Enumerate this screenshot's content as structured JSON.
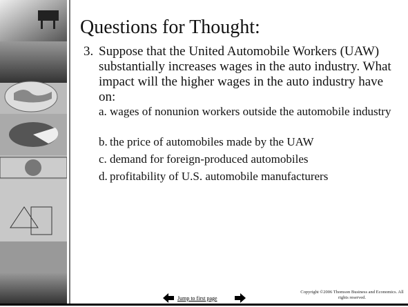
{
  "slide": {
    "title": "Questions for Thought:",
    "question": {
      "number": "3.",
      "text": "Suppose that the United Automobile Workers (UAW) substantially increases wages in the auto industry. What impact will the higher wages in the auto industry have on:"
    },
    "items": [
      {
        "label": "a.",
        "text": "wages of nonunion workers outside the automobile industry"
      },
      {
        "label": "b.",
        "text": "the price of automobiles made by the UAW"
      },
      {
        "label": "c.",
        "text": "demand for foreign-produced automobiles"
      },
      {
        "label": "d.",
        "text": "profitability of U.S. automobile manufacturers"
      }
    ]
  },
  "footer": {
    "link": "Jump to first page",
    "copyright": "Copyright ©2006  Thomson Business and Economics. All rights reserved."
  }
}
